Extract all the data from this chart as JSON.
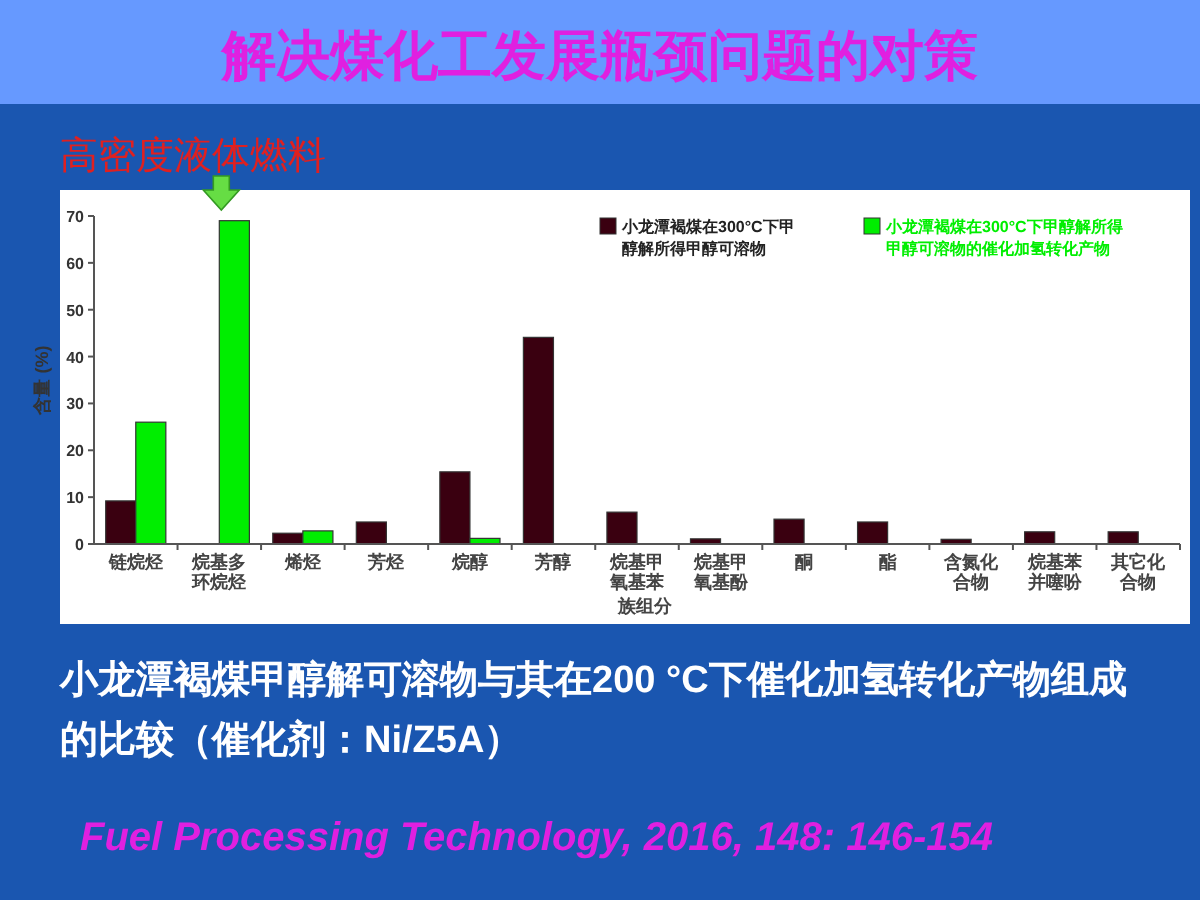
{
  "chart_data": {
    "type": "bar",
    "title": "解决煤化工发展瓶颈问题的对策",
    "subtitle": "高密度液体燃料",
    "xlabel": "族组分",
    "ylabel": "含量 (%)",
    "categories": [
      "链烷烃",
      "烷基多环烷烃",
      "烯烃",
      "芳烃",
      "烷醇",
      "芳醇",
      "烷基甲氧基苯",
      "烷基甲氧基酚",
      "酮",
      "酯",
      "含氮化合物",
      "烷基苯并噻吩",
      "其它化合物"
    ],
    "series": [
      {
        "name": "小龙潭褐煤在300°C下甲醇解所得甲醇可溶物",
        "color": "#3a0010",
        "values": [
          9.2,
          null,
          2.3,
          4.7,
          15.4,
          44.1,
          6.8,
          1.1,
          5.3,
          4.7,
          1.0,
          2.6,
          2.6
        ]
      },
      {
        "name": "小龙潭褐煤在300°C下甲醇解所得甲醇可溶物的催化加氢转化产物",
        "color": "#00ee00",
        "values": [
          26,
          69,
          2.8,
          null,
          1.2,
          null,
          null,
          null,
          null,
          null,
          null,
          null,
          null
        ]
      }
    ],
    "ylim": [
      0,
      70
    ],
    "yticks": [
      0,
      10,
      20,
      30,
      40,
      50,
      60,
      70
    ],
    "legend": "top right",
    "grid": false,
    "annotations": [
      "小龙潭褐煤甲醇解可溶物与其在200 °C下催化加氢转化产物组成的比较（催化剂：Ni/Z5A）",
      "Fuel Processing Technology, 2016, 148: 146-154"
    ]
  }
}
